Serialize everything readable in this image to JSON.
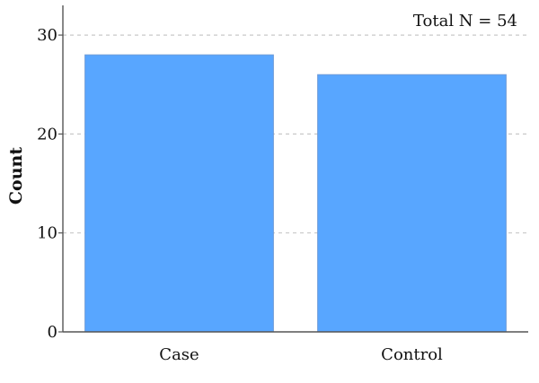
{
  "chart_data": {
    "type": "bar",
    "categories": [
      "Case",
      "Control"
    ],
    "values": [
      28,
      26
    ],
    "title": "",
    "xlabel": "",
    "ylabel": "Count",
    "ylim": [
      0,
      33
    ],
    "yticks": [
      "0",
      "10",
      "20",
      "30"
    ],
    "grid": true,
    "annotation": "Total N = 54",
    "bar_color": "#58a6ff",
    "bar_edge_color": "#6f9cd8"
  }
}
